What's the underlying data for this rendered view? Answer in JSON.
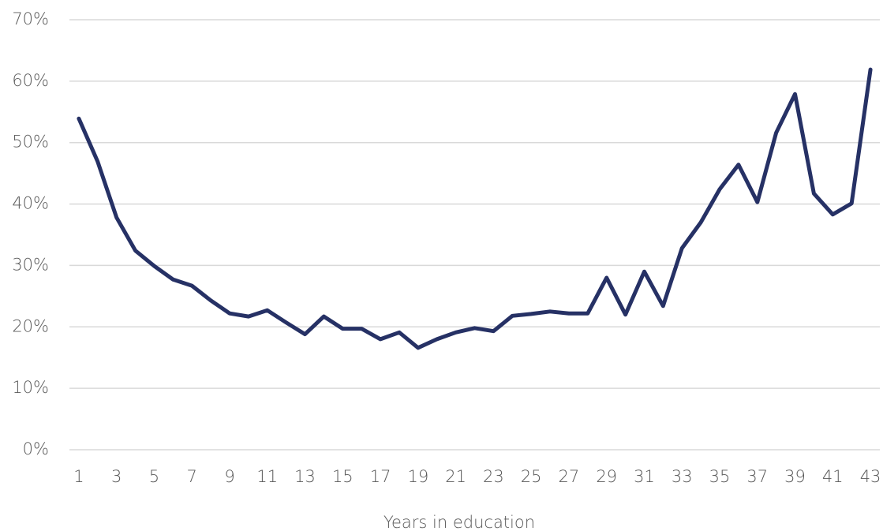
{
  "chart_data": {
    "type": "line",
    "x_label": "Years in education",
    "categories": [
      1,
      null,
      3,
      null,
      5,
      null,
      7,
      null,
      9,
      null,
      11,
      null,
      13,
      null,
      15,
      null,
      17,
      null,
      19,
      null,
      21,
      null,
      23,
      null,
      25,
      null,
      27,
      null,
      29,
      null,
      31,
      null,
      33,
      null,
      35,
      null,
      37,
      null,
      39,
      null,
      41,
      null,
      43
    ],
    "values": [
      53.9,
      46.9,
      37.8,
      32.4,
      29.9,
      27.7,
      26.7,
      24.3,
      22.2,
      21.7,
      22.7,
      20.7,
      18.8,
      21.7,
      19.7,
      19.7,
      18.0,
      19.1,
      16.6,
      18.0,
      19.1,
      19.8,
      19.3,
      21.8,
      22.1,
      22.5,
      22.2,
      22.2,
      28.0,
      22.0,
      29.0,
      23.4,
      32.8,
      37.0,
      42.4,
      46.4,
      40.3,
      51.6,
      57.9,
      41.7,
      38.3,
      40.1,
      61.9
    ],
    "color": "#263165",
    "ylim": [
      0,
      70
    ],
    "yticks": [
      {
        "value": 0,
        "label": "0%"
      },
      {
        "value": 10,
        "label": "10%"
      },
      {
        "value": 20,
        "label": "20%"
      },
      {
        "value": 30,
        "label": "30%"
      },
      {
        "value": 40,
        "label": "40%"
      },
      {
        "value": 50,
        "label": "50%"
      },
      {
        "value": 60,
        "label": "60%"
      },
      {
        "value": 70,
        "label": "70%"
      }
    ],
    "grid": true
  }
}
